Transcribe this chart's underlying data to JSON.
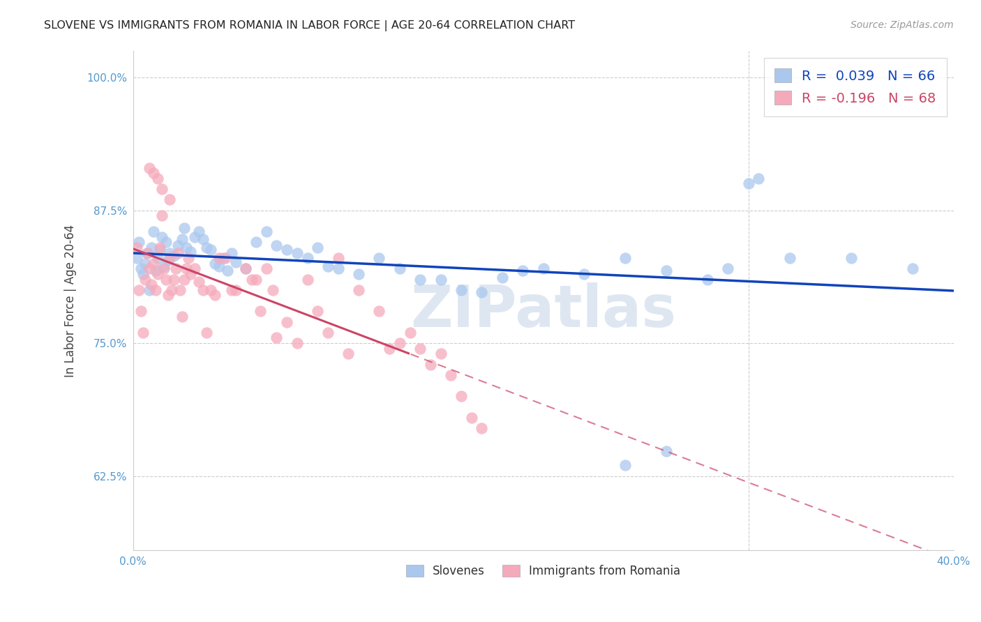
{
  "title": "SLOVENE VS IMMIGRANTS FROM ROMANIA IN LABOR FORCE | AGE 20-64 CORRELATION CHART",
  "source": "Source: ZipAtlas.com",
  "ylabel": "In Labor Force | Age 20-64",
  "xlim": [
    0.0,
    0.4
  ],
  "ylim": [
    0.555,
    1.025
  ],
  "xticks": [
    0.0,
    0.05,
    0.1,
    0.15,
    0.2,
    0.25,
    0.3,
    0.35,
    0.4
  ],
  "xticklabels": [
    "0.0%",
    "",
    "",
    "",
    "",
    "",
    "",
    "",
    "40.0%"
  ],
  "yticks": [
    0.625,
    0.75,
    0.875,
    1.0
  ],
  "yticklabels": [
    "62.5%",
    "75.0%",
    "87.5%",
    "100.0%"
  ],
  "slovene_color": "#aac8ee",
  "romania_color": "#f5aabb",
  "slovene_line_color": "#1144bb",
  "romania_line_color": "#cc4466",
  "watermark": "ZIPatlas",
  "watermark_color": "#c8d8e8",
  "background_color": "#ffffff",
  "grid_color": "#cccccc",
  "slovene_R": "0.039",
  "slovene_N": "66",
  "romania_R": "-0.196",
  "romania_N": "68",
  "slovene_scatter_x": [
    0.002,
    0.003,
    0.004,
    0.005,
    0.006,
    0.007,
    0.008,
    0.009,
    0.01,
    0.011,
    0.012,
    0.013,
    0.014,
    0.015,
    0.016,
    0.017,
    0.018,
    0.02,
    0.022,
    0.024,
    0.025,
    0.026,
    0.028,
    0.03,
    0.032,
    0.034,
    0.036,
    0.038,
    0.04,
    0.042,
    0.044,
    0.046,
    0.048,
    0.05,
    0.055,
    0.06,
    0.065,
    0.07,
    0.075,
    0.08,
    0.085,
    0.09,
    0.095,
    0.1,
    0.11,
    0.12,
    0.13,
    0.14,
    0.15,
    0.16,
    0.17,
    0.18,
    0.19,
    0.2,
    0.22,
    0.24,
    0.26,
    0.28,
    0.29,
    0.3,
    0.305,
    0.35,
    0.38,
    0.26,
    0.24,
    0.32
  ],
  "slovene_scatter_y": [
    0.83,
    0.845,
    0.82,
    0.815,
    0.825,
    0.835,
    0.8,
    0.84,
    0.855,
    0.818,
    0.83,
    0.838,
    0.85,
    0.822,
    0.845,
    0.828,
    0.835,
    0.832,
    0.842,
    0.848,
    0.858,
    0.84,
    0.836,
    0.85,
    0.855,
    0.848,
    0.84,
    0.838,
    0.825,
    0.822,
    0.83,
    0.818,
    0.835,
    0.826,
    0.82,
    0.845,
    0.855,
    0.842,
    0.838,
    0.835,
    0.83,
    0.84,
    0.822,
    0.82,
    0.815,
    0.83,
    0.82,
    0.81,
    0.81,
    0.8,
    0.798,
    0.812,
    0.818,
    0.82,
    0.815,
    0.83,
    0.818,
    0.81,
    0.82,
    0.9,
    0.905,
    0.83,
    0.82,
    0.648,
    0.635,
    0.83
  ],
  "romania_scatter_x": [
    0.002,
    0.003,
    0.004,
    0.005,
    0.006,
    0.007,
    0.008,
    0.009,
    0.01,
    0.011,
    0.012,
    0.013,
    0.014,
    0.015,
    0.016,
    0.017,
    0.018,
    0.019,
    0.02,
    0.021,
    0.022,
    0.023,
    0.024,
    0.025,
    0.026,
    0.027,
    0.028,
    0.03,
    0.032,
    0.034,
    0.036,
    0.038,
    0.04,
    0.042,
    0.045,
    0.048,
    0.05,
    0.055,
    0.058,
    0.06,
    0.062,
    0.065,
    0.068,
    0.07,
    0.075,
    0.08,
    0.085,
    0.09,
    0.095,
    0.1,
    0.105,
    0.11,
    0.12,
    0.125,
    0.13,
    0.135,
    0.14,
    0.145,
    0.15,
    0.155,
    0.16,
    0.165,
    0.17,
    0.008,
    0.01,
    0.012,
    0.014,
    0.018
  ],
  "romania_scatter_y": [
    0.84,
    0.8,
    0.78,
    0.76,
    0.81,
    0.835,
    0.82,
    0.805,
    0.825,
    0.8,
    0.815,
    0.84,
    0.87,
    0.82,
    0.81,
    0.795,
    0.83,
    0.8,
    0.81,
    0.82,
    0.835,
    0.8,
    0.775,
    0.81,
    0.82,
    0.83,
    0.815,
    0.82,
    0.808,
    0.8,
    0.76,
    0.8,
    0.795,
    0.83,
    0.83,
    0.8,
    0.8,
    0.82,
    0.81,
    0.81,
    0.78,
    0.82,
    0.8,
    0.755,
    0.77,
    0.75,
    0.81,
    0.78,
    0.76,
    0.83,
    0.74,
    0.8,
    0.78,
    0.745,
    0.75,
    0.76,
    0.745,
    0.73,
    0.74,
    0.72,
    0.7,
    0.68,
    0.67,
    0.915,
    0.91,
    0.905,
    0.895,
    0.885
  ],
  "romania_line_solid_end": 0.135
}
